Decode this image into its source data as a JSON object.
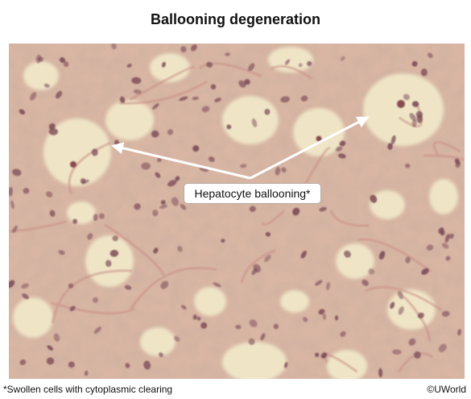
{
  "title": "Ballooning degeneration",
  "annotation": {
    "label": "Hepatocyte ballooning*"
  },
  "footnote": "*Swollen cells with cytoplasmic clearing",
  "credit": "©UWorld",
  "colors": {
    "tissue_pink": "#d9b7a4",
    "ballooned_cytoplasm": "#f3edcc",
    "nucleus": "#7a4a55",
    "arrow": "#ffffff"
  }
}
